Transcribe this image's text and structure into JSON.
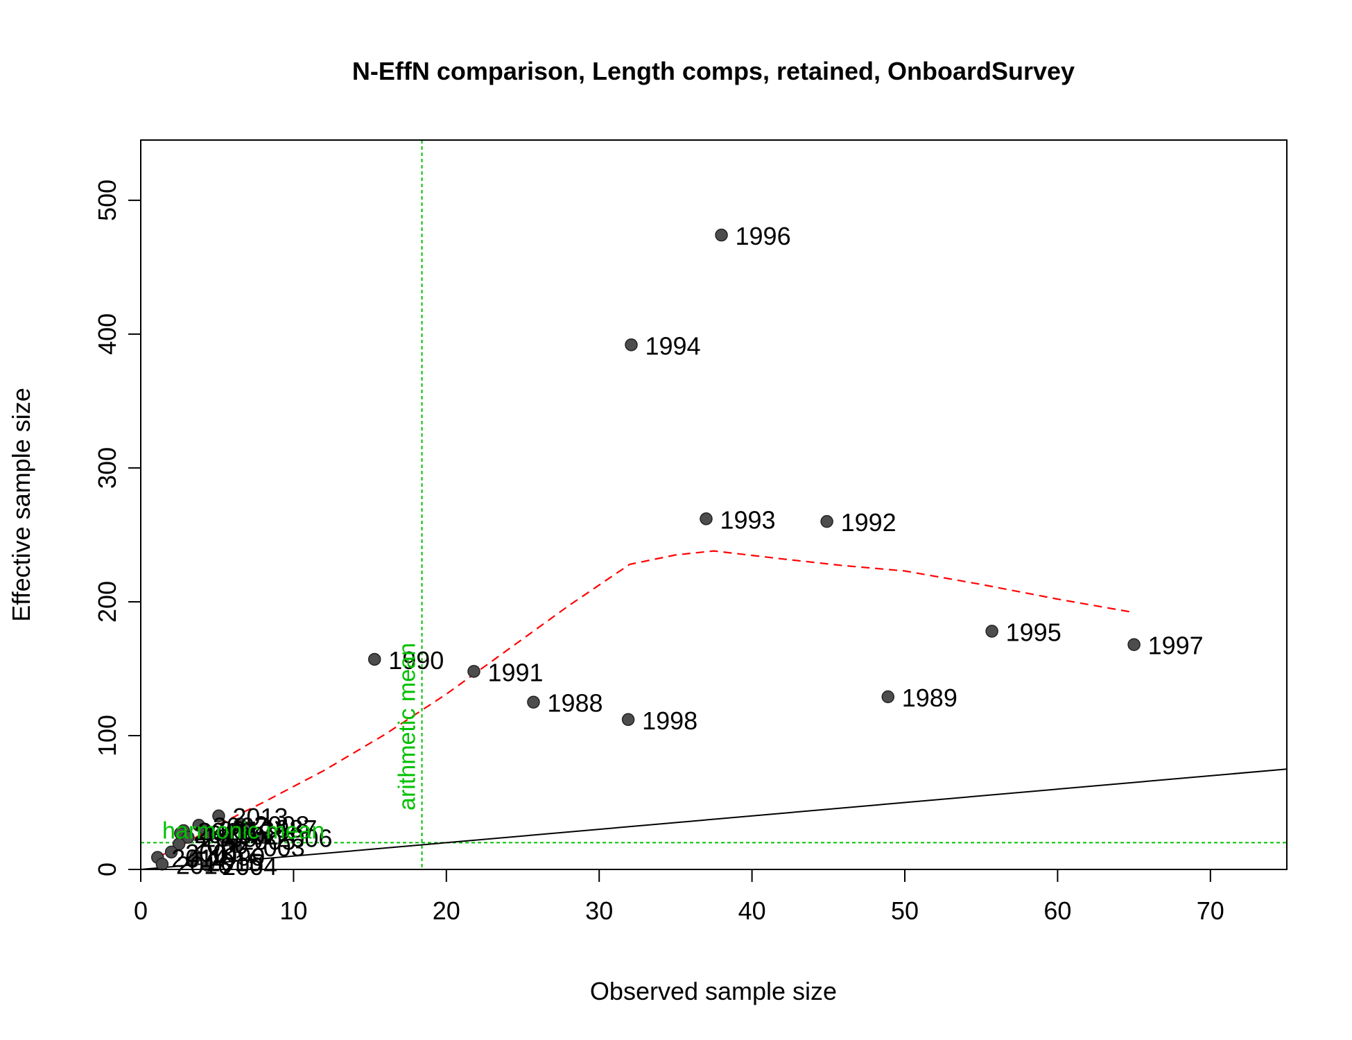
{
  "chart_data": {
    "type": "scatter",
    "title": "N-EffN comparison, Length comps, retained, OnboardSurvey",
    "xlabel": "Observed sample size",
    "ylabel": "Effective sample size",
    "xlim": [
      0,
      75
    ],
    "ylim": [
      0,
      545
    ],
    "x_ticks": [
      0,
      10,
      20,
      30,
      40,
      50,
      60,
      70
    ],
    "y_ticks": [
      0,
      100,
      200,
      300,
      400,
      500
    ],
    "grid": false,
    "colors": {
      "points": "#4d4d4d",
      "point_stroke": "#222222",
      "smoother": "#ff0000",
      "reference_lines": "#00c000",
      "one_to_one": "#000000"
    },
    "points": [
      {
        "label": "1996",
        "x": 38.0,
        "y": 474
      },
      {
        "label": "1994",
        "x": 32.1,
        "y": 392
      },
      {
        "label": "1993",
        "x": 37.0,
        "y": 262
      },
      {
        "label": "1992",
        "x": 44.9,
        "y": 260
      },
      {
        "label": "1995",
        "x": 55.7,
        "y": 178
      },
      {
        "label": "1997",
        "x": 65.0,
        "y": 168
      },
      {
        "label": "1990",
        "x": 15.3,
        "y": 157
      },
      {
        "label": "1991",
        "x": 21.8,
        "y": 148
      },
      {
        "label": "1989",
        "x": 48.9,
        "y": 129
      },
      {
        "label": "1988",
        "x": 25.7,
        "y": 125
      },
      {
        "label": "1998",
        "x": 31.9,
        "y": 112
      },
      {
        "label": "2013",
        "x": 5.1,
        "y": 40
      },
      {
        "label": "2007",
        "x": 3.8,
        "y": 33
      },
      {
        "label": "2008",
        "x": 6.5,
        "y": 34
      },
      {
        "label": "1987",
        "x": 7.0,
        "y": 31
      },
      {
        "label": "2012",
        "x": 4.2,
        "y": 30
      },
      {
        "label": "2010",
        "x": 2.8,
        "y": 29
      },
      {
        "label": "2011",
        "x": 2.6,
        "y": 27
      },
      {
        "label": "2002",
        "x": 4.5,
        "y": 26
      },
      {
        "label": "2006",
        "x": 8.0,
        "y": 24
      },
      {
        "label": "2005",
        "x": 5.6,
        "y": 22
      },
      {
        "label": "2009",
        "x": 3.1,
        "y": 24
      },
      {
        "label": "2003",
        "x": 6.2,
        "y": 17
      },
      {
        "label": "2000",
        "x": 2.5,
        "y": 19
      },
      {
        "label": "2001",
        "x": 2.0,
        "y": 13
      },
      {
        "label": "1999",
        "x": 3.6,
        "y": 10
      },
      {
        "label": "2014",
        "x": 1.1,
        "y": 9
      },
      {
        "label": "2015",
        "x": 3.4,
        "y": 6
      },
      {
        "label": "2004",
        "x": 4.4,
        "y": 3
      },
      {
        "label": "2016",
        "x": 1.4,
        "y": 4
      }
    ],
    "smoother": {
      "x": [
        1.1,
        3,
        5,
        8,
        12,
        16,
        20,
        24,
        28,
        32,
        35,
        37.5,
        42,
        46,
        50,
        55,
        60,
        65
      ],
      "y": [
        9,
        20,
        33,
        50,
        74,
        101,
        131,
        164,
        197,
        228,
        235,
        238,
        232,
        227,
        223,
        213,
        202,
        192
      ]
    },
    "one_to_one": {
      "x": [
        0,
        75
      ],
      "y": [
        0,
        75
      ]
    },
    "reference_lines": {
      "arithmetic_mean_x": 18.4,
      "arithmetic_mean_label": "arithmetic mean",
      "harmonic_mean_y": 20,
      "harmonic_mean_label": "harmonic mean"
    }
  }
}
